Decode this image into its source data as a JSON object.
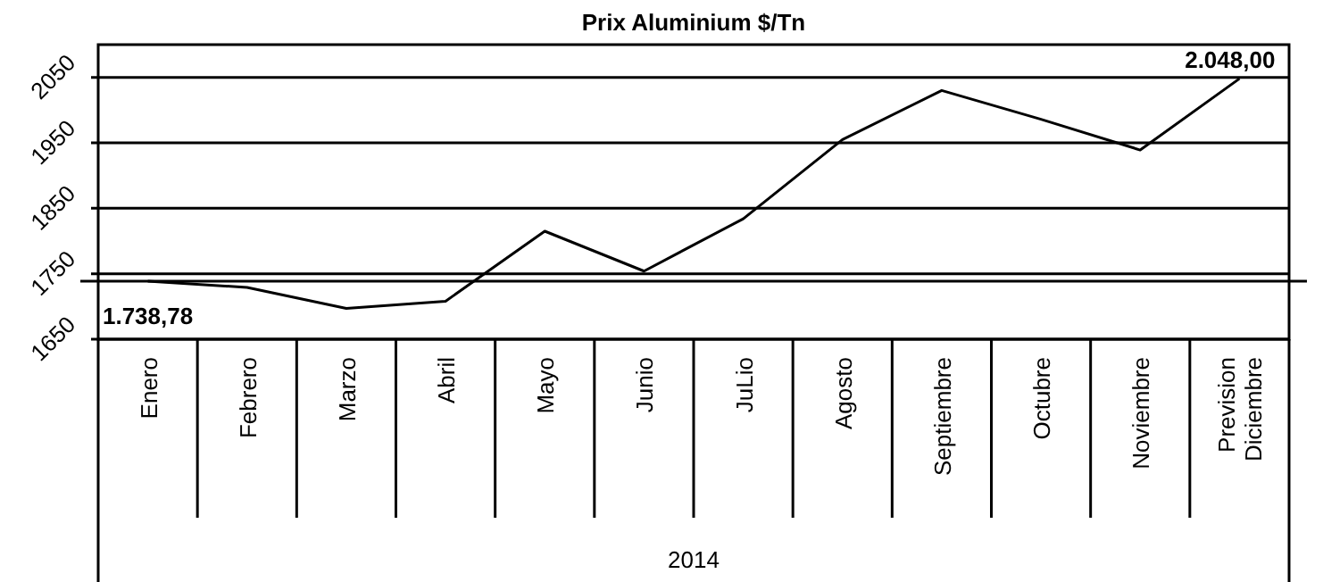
{
  "chart_data": {
    "type": "line",
    "title": "Prix Aluminium $/Tn",
    "xlabel": "2014",
    "categories": [
      "Enero",
      "Febrero",
      "Marzo",
      "Abril",
      "Mayo",
      "Junio",
      "JuLio",
      "Agosto",
      "Septiembre",
      "Octubre",
      "Noviembre",
      "Prevision Diciembre"
    ],
    "series": [
      {
        "color": "#000000",
        "values": [
          1738.78,
          1729,
          1697,
          1708,
          1815,
          1754,
          1834,
          1955,
          2030,
          1986,
          1939,
          2048
        ],
        "value_labels": [
          "1.738,78",
          null,
          null,
          null,
          null,
          null,
          null,
          null,
          null,
          null,
          null,
          "2.048,00"
        ]
      }
    ],
    "ylim": [
      1650,
      2100
    ],
    "yticks": [
      1650,
      1750,
      1850,
      1950,
      2050
    ],
    "grid": "y",
    "marker": "none",
    "line_style": "solid",
    "ref_lines": [
      {
        "axis": "y",
        "value": 1738.78,
        "color": "#000000"
      }
    ]
  }
}
